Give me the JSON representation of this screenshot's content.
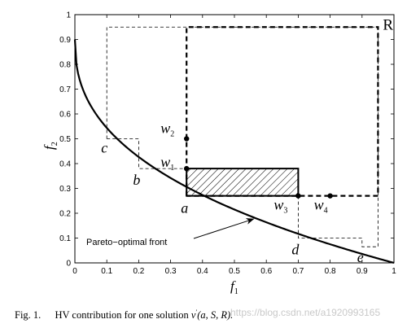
{
  "figure": {
    "xlim": [
      0,
      1
    ],
    "ylim": [
      0,
      1
    ],
    "x_ticks": [
      "0",
      "0.1",
      "0.2",
      "0.3",
      "0.4",
      "0.5",
      "0.6",
      "0.7",
      "0.8",
      "0.9",
      "1"
    ],
    "y_ticks": [
      "0",
      "0.1",
      "0.2",
      "0.3",
      "0.4",
      "0.5",
      "0.6",
      "0.7",
      "0.8",
      "0.9",
      "1"
    ],
    "x_label_main": "f",
    "x_label_sub": "1",
    "y_label_main": "f",
    "y_label_sub": "2",
    "reference_point_label": "R",
    "reference_point": [
      0.95,
      0.95
    ],
    "front_annotation": "Pareto−optimal front",
    "solutions": [
      {
        "label": "c",
        "x": 0.1,
        "y": 0.5
      },
      {
        "label": "b",
        "x": 0.2,
        "y": 0.38
      },
      {
        "label": "a",
        "x": 0.35,
        "y": 0.27
      },
      {
        "label": "d",
        "x": 0.7,
        "y": 0.1
      },
      {
        "label": "e",
        "x": 0.9,
        "y": 0.065
      }
    ],
    "weight_points": [
      {
        "label": "w",
        "sub": "2",
        "x": 0.35,
        "y": 0.5
      },
      {
        "label": "w",
        "sub": "1",
        "x": 0.35,
        "y": 0.38
      },
      {
        "label": "w",
        "sub": "3",
        "x": 0.7,
        "y": 0.27
      },
      {
        "label": "w",
        "sub": "4",
        "x": 0.8,
        "y": 0.27
      }
    ],
    "hatched_region": {
      "x": [
        0.35,
        0.7
      ],
      "y": [
        0.27,
        0.38
      ]
    },
    "colors": {
      "line": "#000000",
      "background": "#ffffff"
    }
  },
  "caption": {
    "fig_label": "Fig. 1.",
    "text": "HV contribution for one solution",
    "formula_v": "v",
    "formula_rest": "(a, S, R)."
  },
  "watermark": "https://blog.csdn.net/a1920993165"
}
